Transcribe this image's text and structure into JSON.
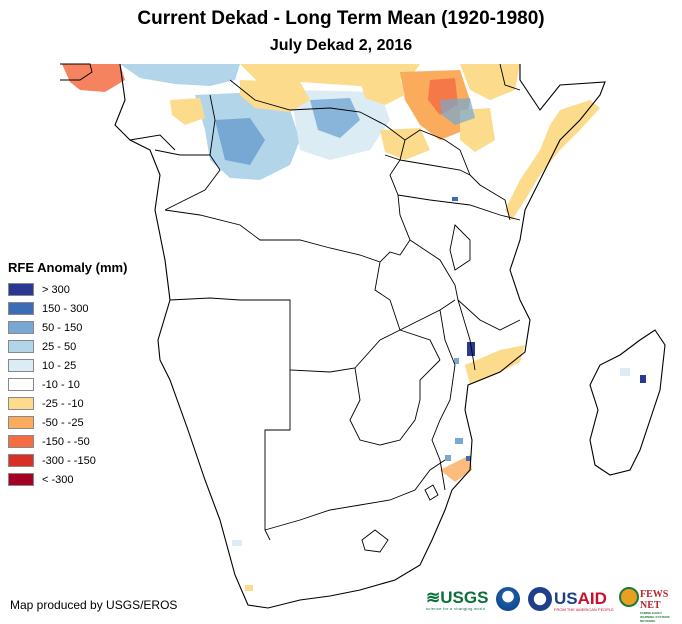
{
  "title": "Current Dekad - Long Term Mean (1920-1980)",
  "subtitle": "July Dekad 2, 2016",
  "legend": {
    "title": "RFE Anomaly (mm)",
    "items": [
      {
        "label": "> 300",
        "color": "#2a3793"
      },
      {
        "label": "150 - 300",
        "color": "#3c6cb5"
      },
      {
        "label": "50 - 150",
        "color": "#76a8d3"
      },
      {
        "label": "25 - 50",
        "color": "#b2d5ea"
      },
      {
        "label": "10 - 25",
        "color": "#dcecf5"
      },
      {
        "label": "-10 - 10",
        "color": "#ffffff"
      },
      {
        "label": "-25 - -10",
        "color": "#fcdc8c"
      },
      {
        "label": "-50 - -25",
        "color": "#fbab5c"
      },
      {
        "label": "-150 - -50",
        "color": "#f46d43"
      },
      {
        "label": "-300 - -150",
        "color": "#d73027"
      },
      {
        "label": "< -300",
        "color": "#a50026"
      }
    ]
  },
  "credit": "Map produced by USGS/EROS",
  "logos": {
    "usgs": "USGS",
    "usgs_tagline": "science for a changing world",
    "usaid_us": "US",
    "usaid_aid": "AID",
    "usaid_tagline": "FROM THE AMERICAN PEOPLE",
    "fews": "FEWS NET",
    "fews_tagline": "FAMINE EARLY WARNING SYSTEMS NETWORK"
  }
}
